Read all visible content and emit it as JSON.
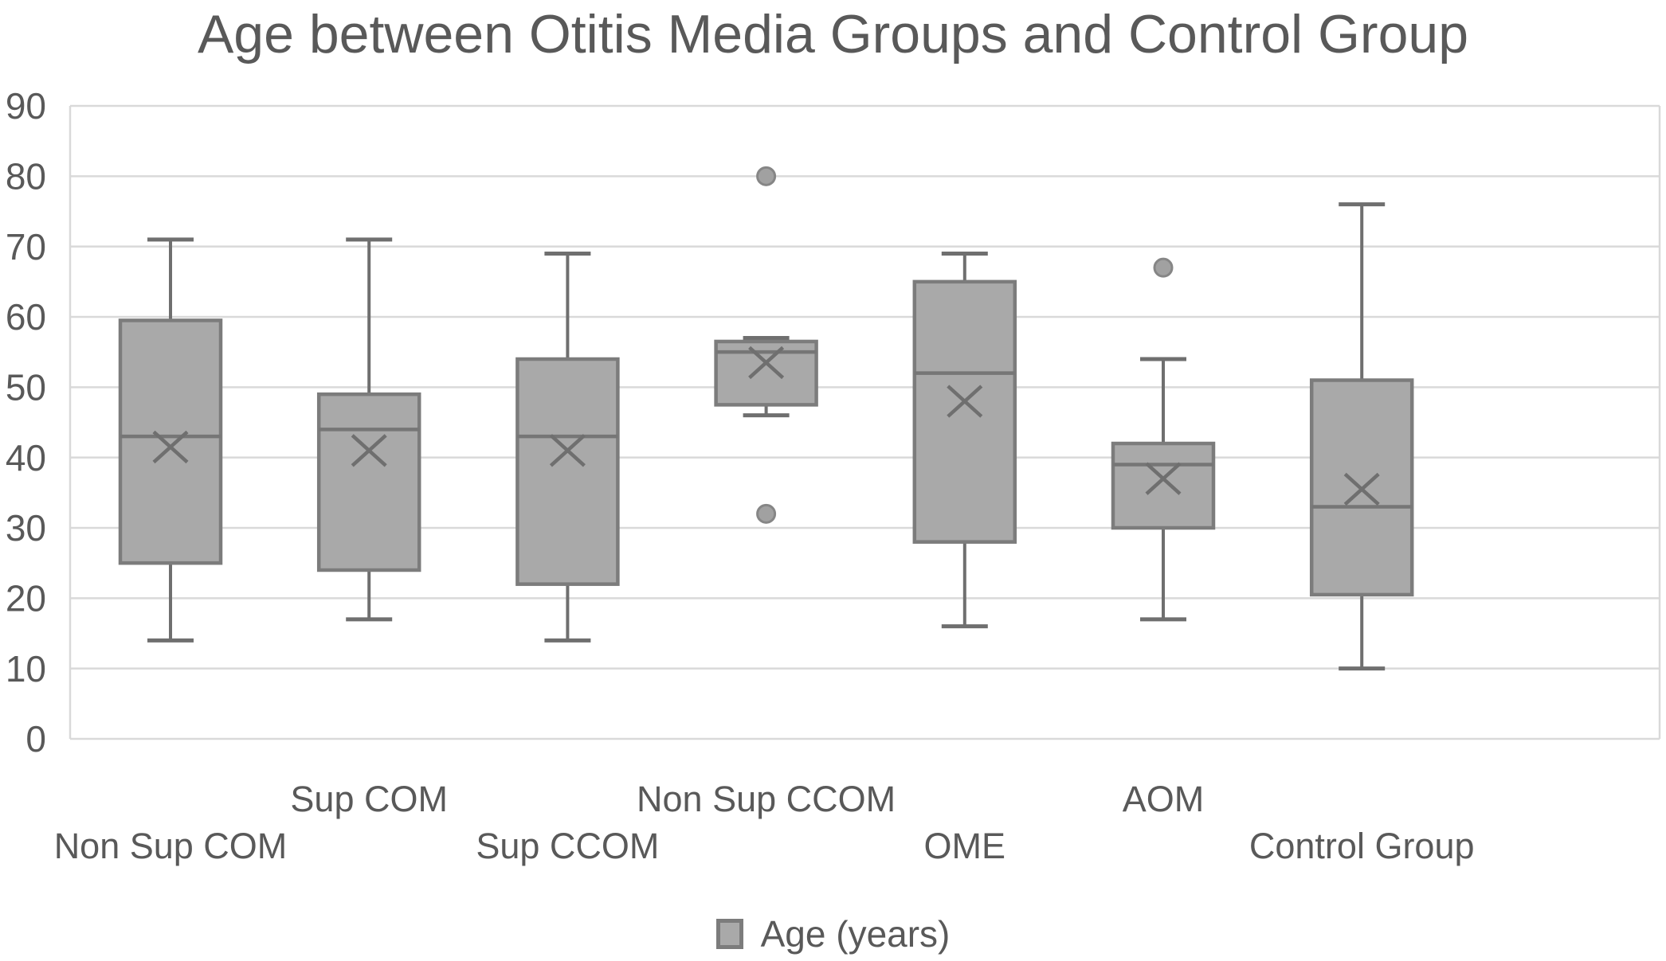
{
  "title": "Age between Otitis Media Groups and Control Group",
  "legend": {
    "label": "Age (years)",
    "swatch_color": "#a9a9a9",
    "swatch_border": "#7c7c7c"
  },
  "colors": {
    "box_fill": "#a9a9a9",
    "box_border": "#7c7c7c",
    "median_line": "#767676",
    "whisker": "#6f6f6f",
    "mean_marker": "#6f6f6f",
    "outlier_fill": "#a1a1a1",
    "outlier_border": "#868686",
    "gridline": "#d9d9d9",
    "text": "#595959"
  },
  "chart_data": {
    "type": "box",
    "title": "Age between Otitis Media Groups and Control Group",
    "legend_entry": "Age (years)",
    "grid": true,
    "legend_position": "bottom",
    "y_axis": {
      "min": 0,
      "max": 90,
      "tick_step": 10,
      "tick_labels": [
        "0",
        "10",
        "20",
        "30",
        "40",
        "50",
        "60",
        "70",
        "80",
        "90"
      ]
    },
    "categories": [
      "Non Sup COM",
      "Sup COM",
      "Sup CCOM",
      "Non Sup CCOM",
      "OME",
      "AOM",
      "Control Group"
    ],
    "series": [
      {
        "name": "Non Sup COM",
        "min": 14,
        "q1": 25,
        "median": 43,
        "mean": 41.5,
        "q3": 59.5,
        "max": 71,
        "outliers": []
      },
      {
        "name": "Sup COM",
        "min": 17,
        "q1": 24,
        "median": 44,
        "mean": 41,
        "q3": 49,
        "max": 71,
        "outliers": []
      },
      {
        "name": "Sup CCOM",
        "min": 14,
        "q1": 22,
        "median": 43,
        "mean": 41,
        "q3": 54,
        "max": 69,
        "outliers": []
      },
      {
        "name": "Non Sup CCOM",
        "min": 46,
        "q1": 47.5,
        "median": 55,
        "mean": 53.5,
        "q3": 56.5,
        "max": 57,
        "outliers": [
          32,
          80
        ]
      },
      {
        "name": "OME",
        "min": 16,
        "q1": 28,
        "median": 52,
        "mean": 48,
        "q3": 65,
        "max": 69,
        "outliers": []
      },
      {
        "name": "AOM",
        "min": 17,
        "q1": 30,
        "median": 39,
        "mean": 37,
        "q3": 42,
        "max": 54,
        "outliers": [
          67
        ]
      },
      {
        "name": "Control Group",
        "min": 10,
        "q1": 20.5,
        "median": 33,
        "mean": 35.5,
        "q3": 51,
        "max": 76,
        "outliers": []
      }
    ]
  }
}
